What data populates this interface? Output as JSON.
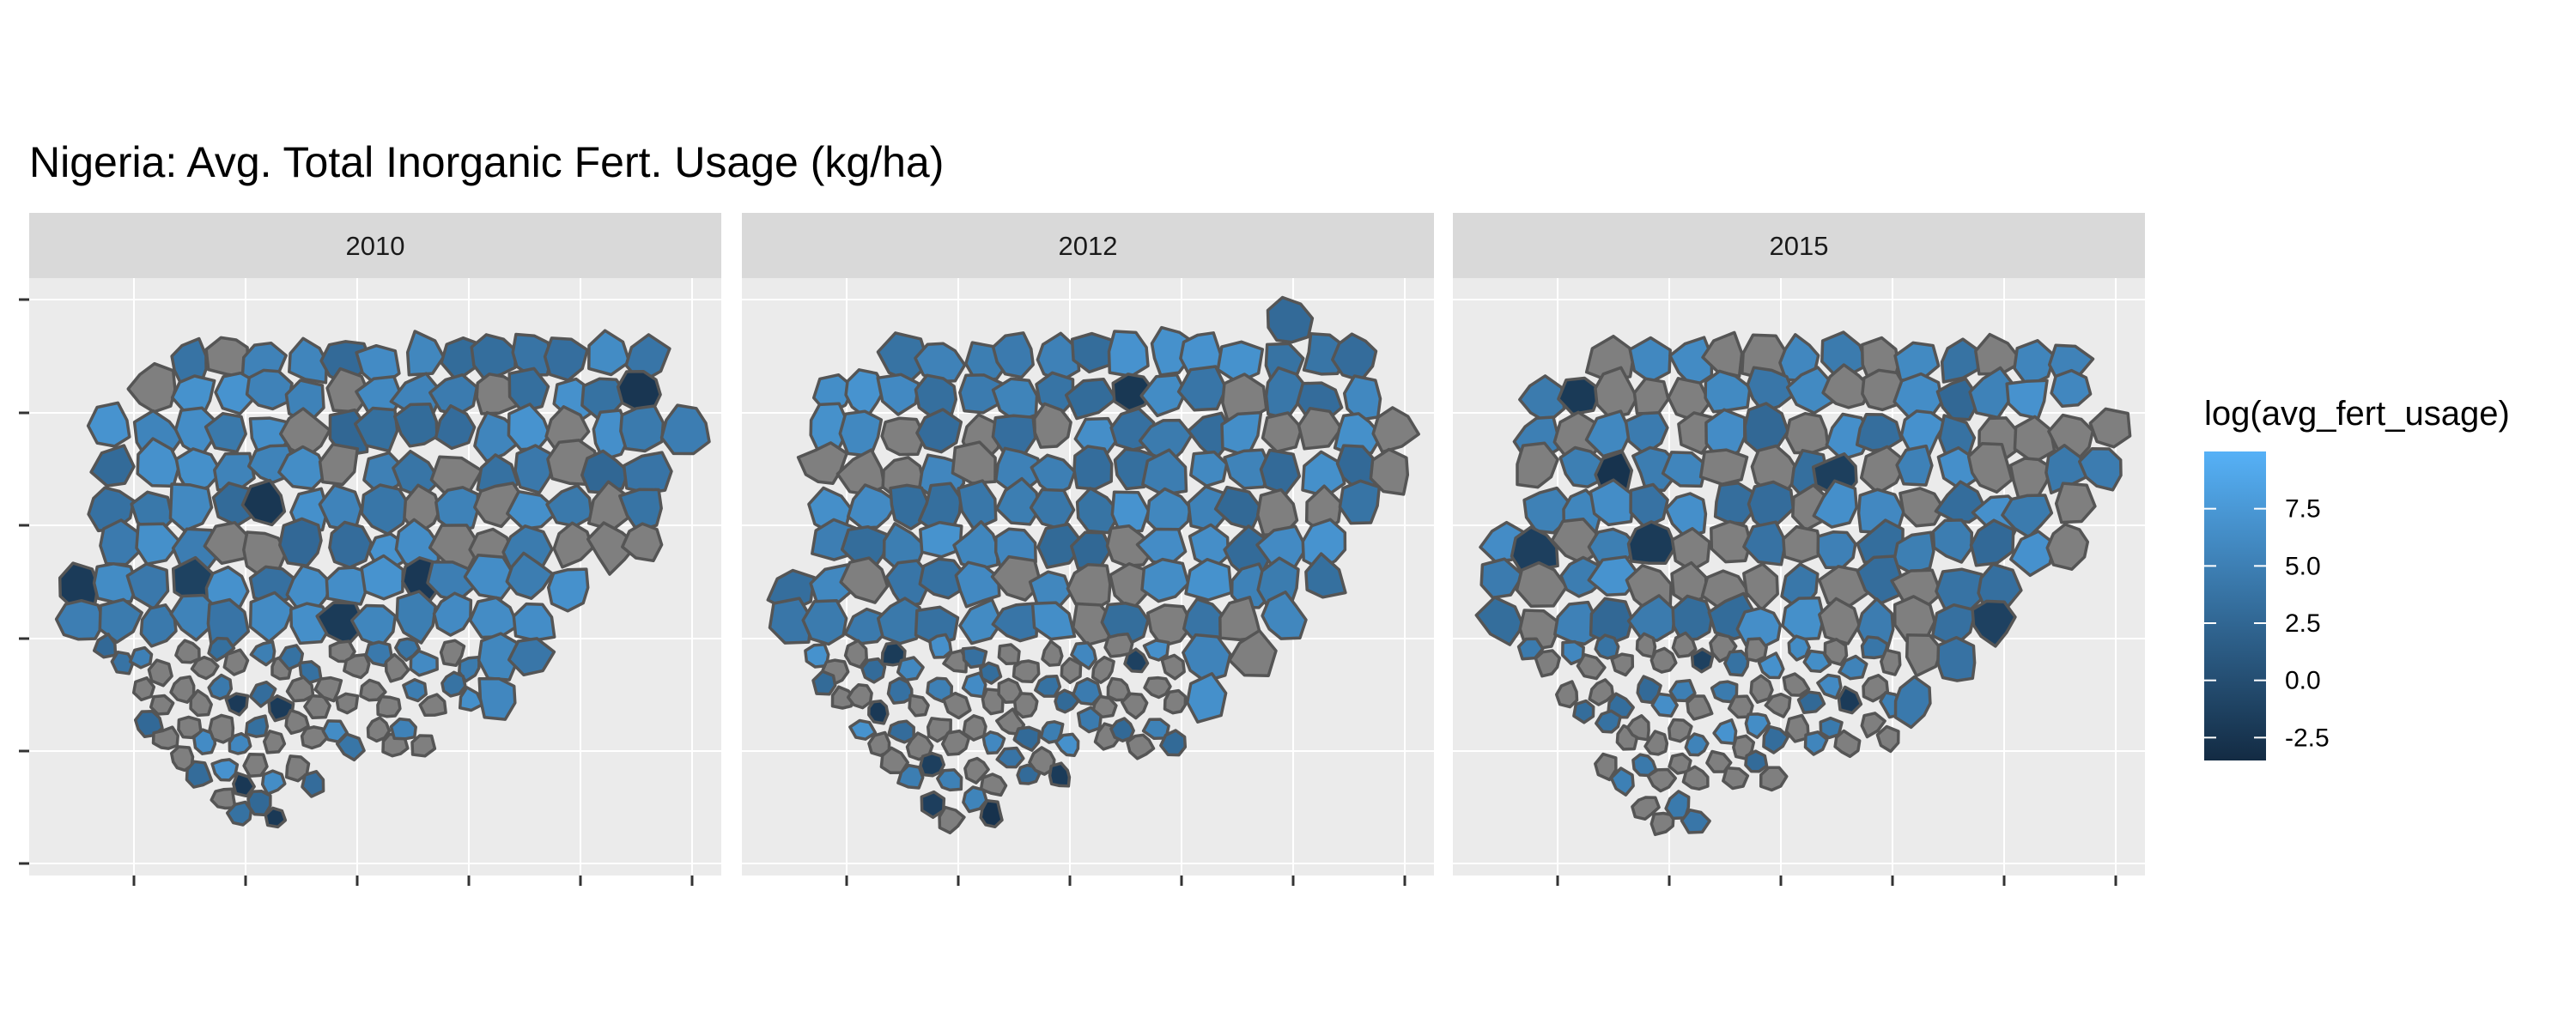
{
  "title": "Nigeria: Avg. Total Inorganic Fert. Usage (kg/ha)",
  "colors": {
    "missing": "#7f7f7f",
    "border": "#555555",
    "panel_bg": "#ebebeb",
    "strip_bg": "#d9d9d9",
    "grid": "#ffffff",
    "scale_low": "#132b43",
    "scale_high": "#56b1f7"
  },
  "chart_data": {
    "type": "choropleth-map",
    "region": "Nigeria",
    "facet_by": "year",
    "facets": [
      "2010",
      "2012",
      "2015"
    ],
    "fill_variable": "log(avg_fert_usage)",
    "legend": {
      "title": "log(avg_fert_usage)",
      "placement": "right",
      "labels": [
        "7.5",
        "5.0",
        "2.5",
        "0.0",
        "-2.5"
      ],
      "breaks": [
        7.5,
        5.0,
        2.5,
        0.0,
        -2.5
      ],
      "limits": [
        -3.5,
        10.0
      ]
    },
    "missing_value_fill": "grey",
    "axes": {
      "x_tick_labels": "none",
      "y_tick_labels": "none"
    },
    "grid": true
  }
}
